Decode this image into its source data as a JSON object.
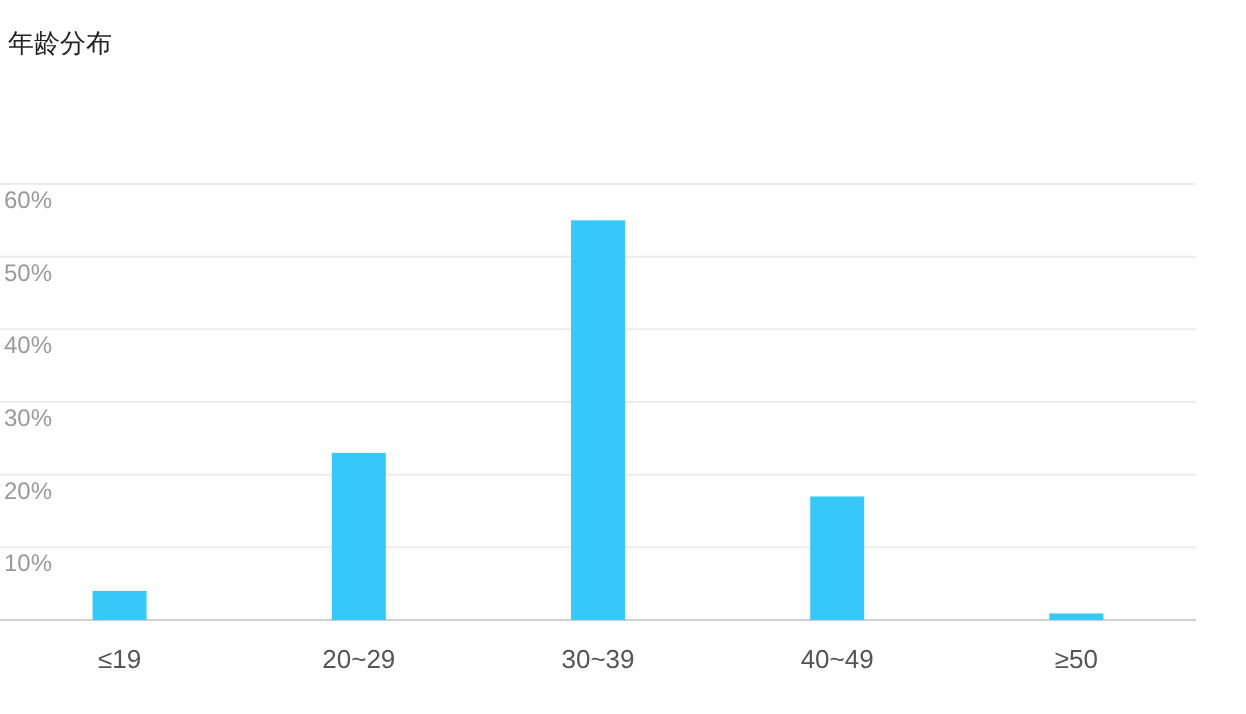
{
  "chart_data": {
    "type": "bar",
    "title": "年龄分布",
    "categories": [
      "≤19",
      "20~29",
      "30~39",
      "40~49",
      "≥50"
    ],
    "values": [
      4.0,
      23.0,
      55.0,
      17.0,
      0.9
    ],
    "color": "#36c8f8",
    "ylim": [
      0,
      60
    ],
    "yticks": [
      {
        "value": 0,
        "label": null
      },
      {
        "value": 10,
        "label": "10%"
      },
      {
        "value": 20,
        "label": "20%"
      },
      {
        "value": 30,
        "label": "30%"
      },
      {
        "value": 40,
        "label": "40%"
      },
      {
        "value": 50,
        "label": "50%"
      },
      {
        "value": 60,
        "label": "60%"
      }
    ],
    "grid": "y"
  }
}
